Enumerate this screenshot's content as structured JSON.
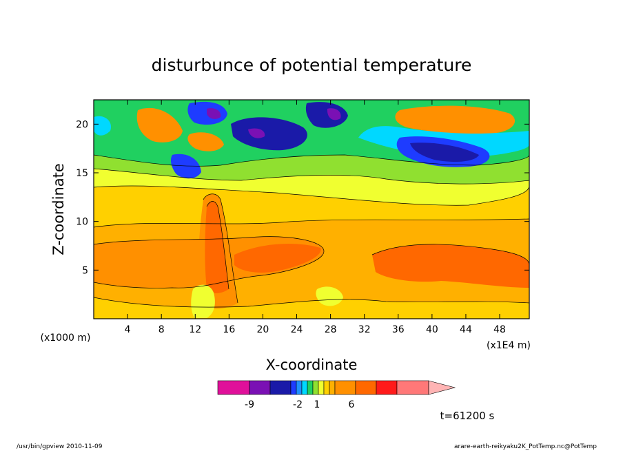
{
  "chart_data": {
    "type": "heatmap",
    "title": "disturbunce of potential temperature",
    "xlabel": "X-coordinate",
    "ylabel": "Z-coordinate",
    "x_unit": "(x1E4 m)",
    "y_unit": "(x1000 m)",
    "x_ticks": [
      "4",
      "8",
      "12",
      "16",
      "20",
      "24",
      "28",
      "32",
      "36",
      "40",
      "44",
      "48"
    ],
    "x_tick_values": [
      4,
      8,
      12,
      16,
      20,
      24,
      28,
      32,
      36,
      40,
      44,
      48
    ],
    "y_ticks": [
      "5",
      "10",
      "15",
      "20"
    ],
    "y_tick_values": [
      5,
      10,
      15,
      20
    ],
    "xlim": [
      0,
      51.5
    ],
    "ylim": [
      0,
      22.5
    ],
    "time_label": "t=61200 s",
    "colorbar": {
      "tick_labels": [
        "-9",
        "-2",
        "1",
        "6"
      ],
      "levels": [
        "#e0109a",
        "#7a10b4",
        "#1a1aa8",
        "#1e3cff",
        "#1e90ff",
        "#00d8ff",
        "#20d060",
        "#90e030",
        "#f0ff30",
        "#ffd000",
        "#ffb000",
        "#ff9000",
        "#ff6800",
        "#ff1a1a",
        "#ff7878"
      ],
      "extend_color": "#ffb4b4"
    },
    "colors": {
      "dark_blue": "#1a1aa8",
      "purple": "#7a10b4",
      "blue": "#1e3cff",
      "cyan": "#00d8ff",
      "green": "#20d060",
      "light_green": "#90e030",
      "yellow": "#f0ff30",
      "gold": "#ffd000",
      "orange_light": "#ffb000",
      "orange": "#ff9000",
      "orange_dark": "#ff6800"
    }
  },
  "footer": {
    "left": "/usr/bin/gpview  2010-11-09",
    "right": "arare-earth-reikyaku2K_PotTemp.nc@PotTemp"
  }
}
